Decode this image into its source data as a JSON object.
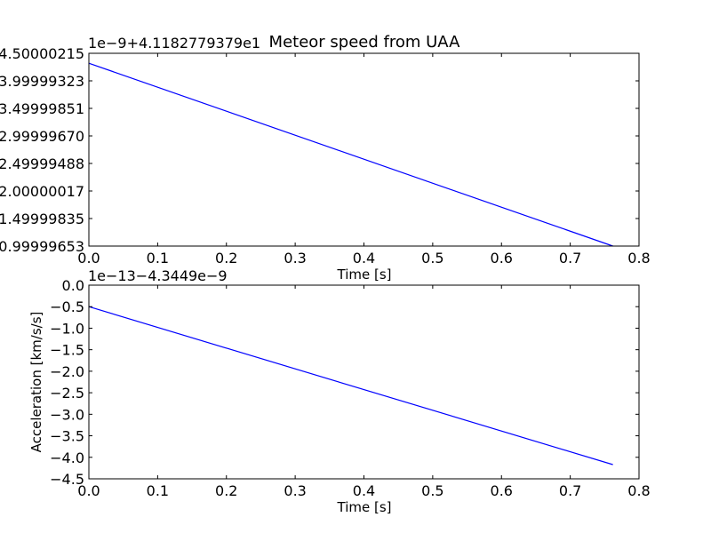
{
  "figure_title": "Meteor speed from UAA",
  "chart_data": [
    {
      "type": "line",
      "title": "Meteor speed from UAA",
      "xlabel": "Time [s]",
      "ylabel": "",
      "offset_text": "1e−9+4.1182779379e1",
      "xlim": [
        0.0,
        0.8
      ],
      "ylim": [
        0.99999653,
        4.50000215
      ],
      "xticks": [
        "0.0",
        "0.1",
        "0.2",
        "0.3",
        "0.4",
        "0.5",
        "0.6",
        "0.7",
        "0.8"
      ],
      "xtick_values": [
        0.0,
        0.1,
        0.2,
        0.3,
        0.4,
        0.5,
        0.6,
        0.7,
        0.8
      ],
      "yticks": [
        "0.99999653",
        "1.49999835",
        "2.00000017",
        "2.49999488",
        "2.99999670",
        "3.49999851",
        "3.99999323",
        "4.50000215"
      ],
      "ytick_values": [
        0.99999653,
        1.49999835,
        2.00000017,
        2.49999488,
        2.9999967,
        3.49999851,
        3.99999323,
        4.50000215
      ],
      "grid": false,
      "series": [
        {
          "color": "#0000ff",
          "x": [
            0.0,
            0.762
          ],
          "y": [
            4.32,
            0.99999653
          ]
        }
      ]
    },
    {
      "type": "line",
      "title": "",
      "xlabel": "Time [s]",
      "ylabel": "Acceleration [km/s/s]",
      "offset_text": "1e−13−4.3449e−9",
      "xlim": [
        0.0,
        0.8
      ],
      "ylim": [
        -4.5,
        0.0
      ],
      "xticks": [
        "0.0",
        "0.1",
        "0.2",
        "0.3",
        "0.4",
        "0.5",
        "0.6",
        "0.7",
        "0.8"
      ],
      "xtick_values": [
        0.0,
        0.1,
        0.2,
        0.3,
        0.4,
        0.5,
        0.6,
        0.7,
        0.8
      ],
      "yticks": [
        "0.0",
        "−0.5",
        "−1.0",
        "−1.5",
        "−2.0",
        "−2.5",
        "−3.0",
        "−3.5",
        "−4.0",
        "−4.5"
      ],
      "ytick_values": [
        0.0,
        -0.5,
        -1.0,
        -1.5,
        -2.0,
        -2.5,
        -3.0,
        -3.5,
        -4.0,
        -4.5
      ],
      "grid": false,
      "series": [
        {
          "color": "#0000ff",
          "x": [
            0.0,
            0.762
          ],
          "y": [
            -0.5,
            -4.17
          ]
        }
      ]
    }
  ]
}
